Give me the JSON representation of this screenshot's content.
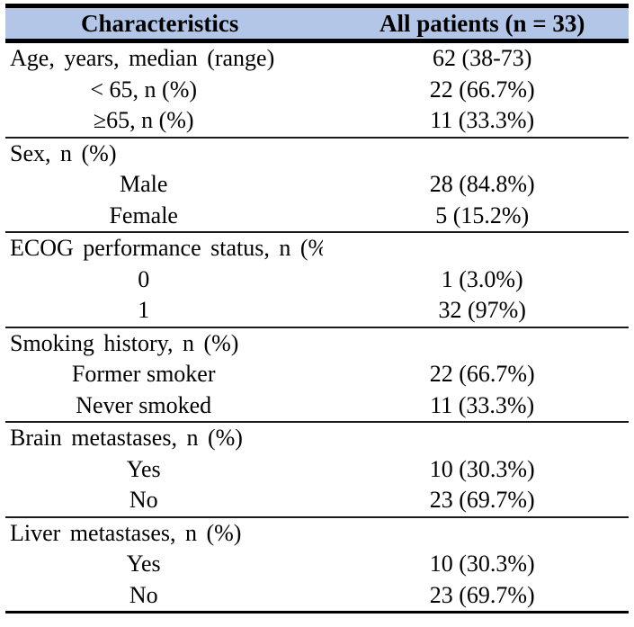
{
  "colors": {
    "header_bg": "#b4c6e7",
    "border": "#000000",
    "text": "#000000"
  },
  "table": {
    "columns": [
      {
        "label": "Characteristics"
      },
      {
        "label": "All patients (n = 33)"
      }
    ],
    "sections": [
      {
        "rows": [
          {
            "type": "top",
            "label": "Age, years, median (range)",
            "value": "62 (38-73)"
          },
          {
            "type": "sub",
            "label": "< 65, n (%)",
            "value": "22 (66.7%)"
          },
          {
            "type": "sub",
            "label": "≥65, n (%)",
            "value": "11 (33.3%)"
          }
        ]
      },
      {
        "rows": [
          {
            "type": "top",
            "label": "Sex, n (%)",
            "value": ""
          },
          {
            "type": "sub",
            "label": "Male",
            "value": "28 (84.8%)"
          },
          {
            "type": "sub",
            "label": "Female",
            "value": "5 (15.2%)"
          }
        ]
      },
      {
        "rows": [
          {
            "type": "top",
            "label": "ECOG performance status, n (%)",
            "value": ""
          },
          {
            "type": "sub",
            "label": "0",
            "value": "1 (3.0%)"
          },
          {
            "type": "sub",
            "label": "1",
            "value": "32 (97%)"
          }
        ]
      },
      {
        "rows": [
          {
            "type": "top",
            "label": "Smoking history, n (%)",
            "value": ""
          },
          {
            "type": "sub",
            "label": "Former smoker",
            "value": "22 (66.7%)"
          },
          {
            "type": "sub",
            "label": "Never smoked",
            "value": "11 (33.3%)"
          }
        ]
      },
      {
        "rows": [
          {
            "type": "top",
            "label": "Brain metastases, n (%)",
            "value": ""
          },
          {
            "type": "sub",
            "label": "Yes",
            "value": "10 (30.3%)"
          },
          {
            "type": "sub",
            "label": "No",
            "value": "23 (69.7%)"
          }
        ]
      },
      {
        "rows": [
          {
            "type": "top",
            "label": "Liver metastases, n (%)",
            "value": ""
          },
          {
            "type": "sub",
            "label": "Yes",
            "value": "10 (30.3%)"
          },
          {
            "type": "sub",
            "label": "No",
            "value": "23 (69.7%)"
          }
        ]
      }
    ]
  }
}
